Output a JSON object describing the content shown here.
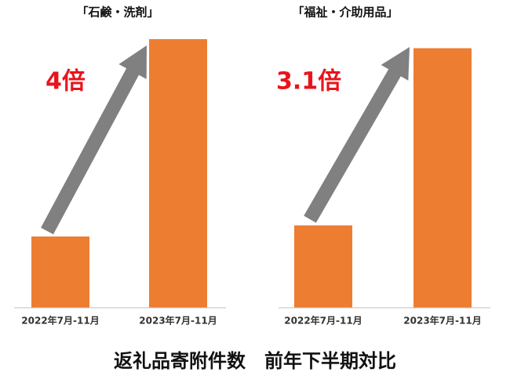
{
  "caption": "返礼品寄附件数　前年下半期対比",
  "chart_data": [
    {
      "type": "bar",
      "title": "「石鹸・洗剤」",
      "annotation": "4倍",
      "categories": [
        "2022年7月-11月",
        "2023年7月-11月"
      ],
      "values": [
        1,
        3.77
      ],
      "color": "#ed7d31",
      "ylim": [
        0,
        3.77
      ]
    },
    {
      "type": "bar",
      "title": "「福祉・介助用品」",
      "annotation": "3.1倍",
      "categories": [
        "2022年7月-11月",
        "2023年7月-11月"
      ],
      "values": [
        1,
        3.15
      ],
      "color": "#ed7d31",
      "ylim": [
        0,
        3.26
      ]
    }
  ]
}
